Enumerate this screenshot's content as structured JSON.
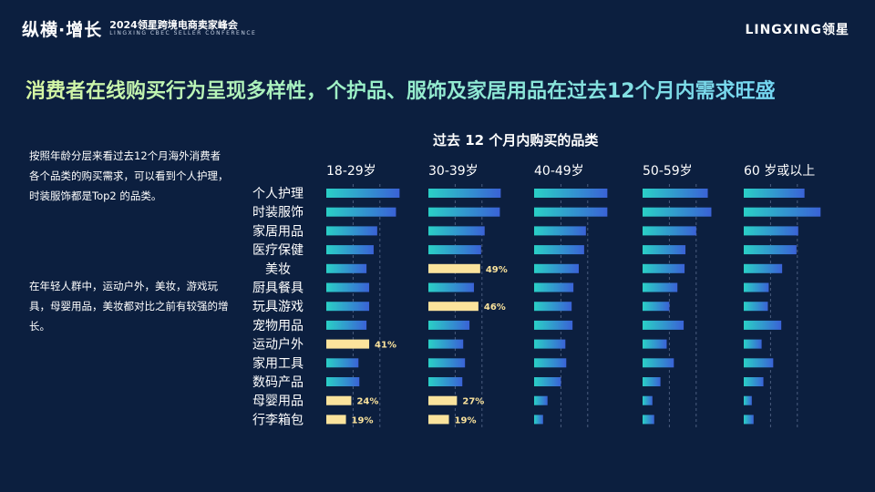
{
  "header": {
    "brand": "纵横·增长",
    "event_title": "2024领星跨境电商卖家峰会",
    "event_subtitle": "LINGXING CBEC SELLER CONFERENCE",
    "logo": "LINGXING领星"
  },
  "headline": "消费者在线购买行为呈现多样性，个护品、服饰及家居用品在过去12个月内需求旺盛",
  "description": [
    "按照年龄分层来看过去12个月海外消费者各个品类的购买需求，可以看到个人护理，时装服饰都是Top2 的品类。",
    "在年轻人群中，运动户外，美妆，游戏玩具，母婴用品，美妆都对比之前有较强的增长。"
  ],
  "colors": {
    "background": "#0c1f3f",
    "bar_start": "#2ad0c6",
    "bar_end": "#3a62d6",
    "highlight": "#fbe39c",
    "label": "#ffffff"
  },
  "chart_data": {
    "type": "bar",
    "orientation": "horizontal",
    "title": "过去 12 个月内购买的品类",
    "categories": [
      "个人护理",
      "时装服饰",
      "家居用品",
      "医疗保健",
      "美妆",
      "厨具餐具",
      "玩具游戏",
      "宠物用品",
      "运动户外",
      "家用工具",
      "数码产品",
      "母婴用品",
      "行李箱包"
    ],
    "series": [
      {
        "name": "18-29岁",
        "values": [
          82,
          78,
          57,
          53,
          45,
          48,
          48,
          45,
          48,
          36,
          37,
          28,
          22
        ],
        "highlight_labels": {
          "8": "41%",
          "11": "24%",
          "12": "19%"
        }
      },
      {
        "name": "30-39岁",
        "values": [
          81,
          80,
          63,
          59,
          58,
          51,
          56,
          46,
          39,
          41,
          38,
          32,
          23
        ],
        "highlight_labels": {
          "4": "49%",
          "6": "46%",
          "11": "27%",
          "12": "19%"
        }
      },
      {
        "name": "40-49岁",
        "values": [
          82,
          82,
          58,
          56,
          50,
          44,
          42,
          43,
          35,
          36,
          30,
          15,
          10
        ],
        "highlight_labels": {}
      },
      {
        "name": "50-59岁",
        "values": [
          73,
          77,
          60,
          48,
          47,
          39,
          30,
          46,
          27,
          35,
          20,
          11,
          13
        ],
        "highlight_labels": {}
      },
      {
        "name": "60 岁或以上",
        "values": [
          68,
          86,
          61,
          59,
          43,
          28,
          27,
          42,
          20,
          33,
          22,
          9,
          11
        ],
        "highlight_labels": {}
      }
    ]
  }
}
